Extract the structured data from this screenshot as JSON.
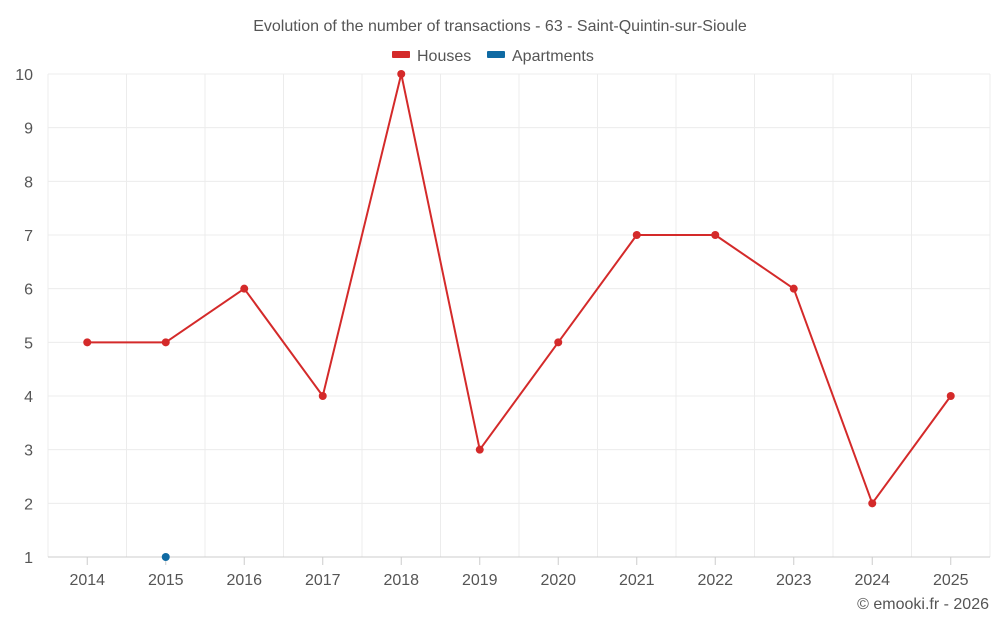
{
  "chart_data": {
    "type": "line",
    "title": "Evolution of the number of transactions - 63 - Saint-Quintin-sur-Sioule",
    "categories": [
      "2014",
      "2015",
      "2016",
      "2017",
      "2018",
      "2019",
      "2020",
      "2021",
      "2022",
      "2023",
      "2024",
      "2025"
    ],
    "series": [
      {
        "name": "Houses",
        "color": "#d42a2a",
        "values": [
          5,
          5,
          6,
          4,
          10,
          3,
          5,
          7,
          7,
          6,
          2,
          4
        ]
      },
      {
        "name": "Apartments",
        "color": "#0f6aa3",
        "values": [
          null,
          1,
          null,
          null,
          null,
          null,
          null,
          null,
          null,
          null,
          null,
          null
        ]
      }
    ],
    "ylim": [
      1,
      10
    ],
    "yticks": [
      1,
      2,
      3,
      4,
      5,
      6,
      7,
      8,
      9,
      10
    ],
    "xlabel": "",
    "ylabel": "",
    "grid": true,
    "legend": "top-center"
  },
  "credit": "© emooki.fr - 2026"
}
